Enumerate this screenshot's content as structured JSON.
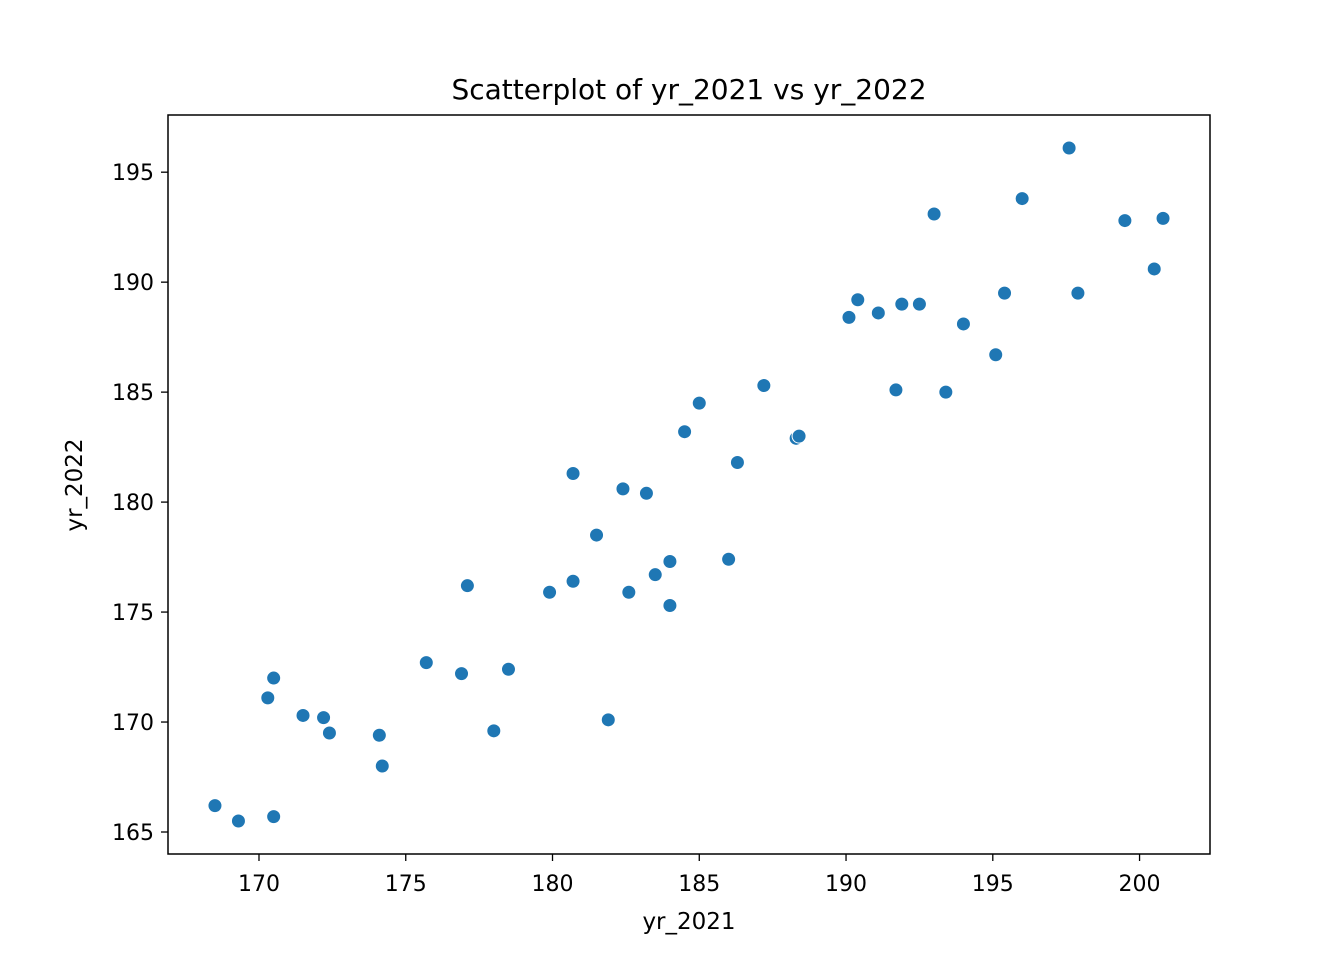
{
  "chart_data": {
    "type": "scatter",
    "title": "Scatterplot of yr_2021 vs yr_2022",
    "xlabel": "yr_2021",
    "ylabel": "yr_2022",
    "xlim": [
      166.9,
      202.4
    ],
    "ylim": [
      164.0,
      197.6
    ],
    "xticks": [
      170,
      175,
      180,
      185,
      190,
      195,
      200
    ],
    "yticks": [
      165,
      170,
      175,
      180,
      185,
      190,
      195
    ],
    "grid": false,
    "legend": "none",
    "marker_color": "#1f77b4",
    "points": [
      {
        "x": 168.5,
        "y": 166.2
      },
      {
        "x": 169.3,
        "y": 165.5
      },
      {
        "x": 170.5,
        "y": 165.7
      },
      {
        "x": 170.3,
        "y": 171.1
      },
      {
        "x": 170.5,
        "y": 172.0
      },
      {
        "x": 171.5,
        "y": 170.3
      },
      {
        "x": 172.2,
        "y": 170.2
      },
      {
        "x": 172.4,
        "y": 169.5
      },
      {
        "x": 174.1,
        "y": 169.4
      },
      {
        "x": 174.2,
        "y": 168.0
      },
      {
        "x": 175.7,
        "y": 172.7
      },
      {
        "x": 176.9,
        "y": 172.2
      },
      {
        "x": 177.1,
        "y": 176.2
      },
      {
        "x": 178.0,
        "y": 169.6
      },
      {
        "x": 178.5,
        "y": 172.4
      },
      {
        "x": 179.9,
        "y": 175.9
      },
      {
        "x": 180.7,
        "y": 176.4
      },
      {
        "x": 180.7,
        "y": 181.3
      },
      {
        "x": 181.5,
        "y": 178.5
      },
      {
        "x": 181.9,
        "y": 170.1
      },
      {
        "x": 182.4,
        "y": 180.6
      },
      {
        "x": 182.6,
        "y": 175.9
      },
      {
        "x": 183.2,
        "y": 180.4
      },
      {
        "x": 183.5,
        "y": 176.7
      },
      {
        "x": 184.0,
        "y": 177.3
      },
      {
        "x": 184.0,
        "y": 175.3
      },
      {
        "x": 184.5,
        "y": 183.2
      },
      {
        "x": 185.0,
        "y": 184.5
      },
      {
        "x": 186.0,
        "y": 177.4
      },
      {
        "x": 186.3,
        "y": 181.8
      },
      {
        "x": 187.2,
        "y": 185.3
      },
      {
        "x": 188.3,
        "y": 182.9
      },
      {
        "x": 188.4,
        "y": 183.0
      },
      {
        "x": 190.1,
        "y": 188.4
      },
      {
        "x": 190.4,
        "y": 189.2
      },
      {
        "x": 191.1,
        "y": 188.6
      },
      {
        "x": 191.7,
        "y": 185.1
      },
      {
        "x": 191.9,
        "y": 189.0
      },
      {
        "x": 192.5,
        "y": 189.0
      },
      {
        "x": 193.0,
        "y": 193.1
      },
      {
        "x": 193.4,
        "y": 185.0
      },
      {
        "x": 194.0,
        "y": 188.1
      },
      {
        "x": 195.1,
        "y": 186.7
      },
      {
        "x": 195.4,
        "y": 189.5
      },
      {
        "x": 196.0,
        "y": 193.8
      },
      {
        "x": 197.6,
        "y": 196.1
      },
      {
        "x": 197.9,
        "y": 189.5
      },
      {
        "x": 199.5,
        "y": 192.8
      },
      {
        "x": 200.5,
        "y": 190.6
      },
      {
        "x": 200.8,
        "y": 192.9
      }
    ]
  }
}
